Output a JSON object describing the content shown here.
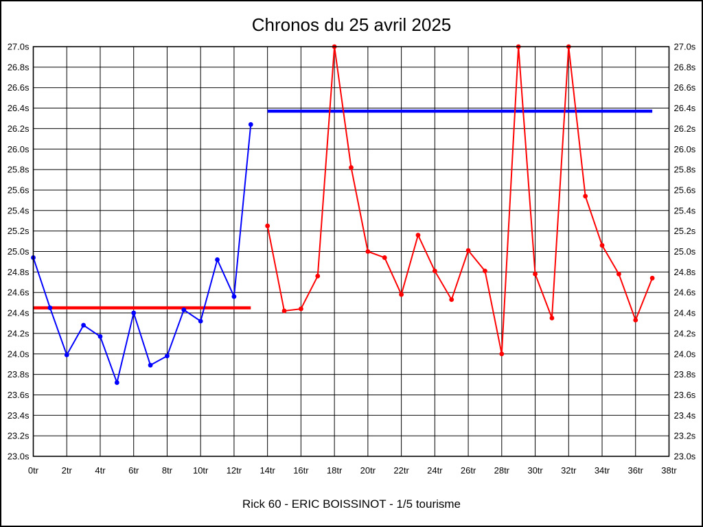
{
  "page": {
    "background_color": "#ffffff",
    "border_color": "#000000"
  },
  "chart_data": {
    "type": "line",
    "title": "Chronos du 25 avril 2025",
    "subtitle": "Rick 60 - ERIC BOISSINOT - 1/5 tourisme",
    "xlabel": "",
    "ylabel": "",
    "x_unit": "tr",
    "y_unit": "s",
    "xlim": [
      0,
      38
    ],
    "ylim": [
      23.0,
      27.0
    ],
    "x_tick_step": 2,
    "y_tick_step": 0.2,
    "grid": "on",
    "legend": "none",
    "grid_color": "#000000",
    "x_tick_labels": [
      "0tr",
      "2tr",
      "4tr",
      "6tr",
      "8tr",
      "10tr",
      "12tr",
      "14tr",
      "16tr",
      "18tr",
      "20tr",
      "22tr",
      "24tr",
      "26tr",
      "28tr",
      "30tr",
      "32tr",
      "34tr",
      "36tr",
      "38tr"
    ],
    "y_tick_labels": [
      "27.0s",
      "26.8s",
      "26.6s",
      "26.4s",
      "26.2s",
      "26.0s",
      "25.8s",
      "25.6s",
      "25.4s",
      "25.2s",
      "25.0s",
      "24.8s",
      "24.6s",
      "24.4s",
      "24.2s",
      "24.0s",
      "23.8s",
      "23.6s",
      "23.4s",
      "23.2s",
      "23.0s"
    ],
    "series": [
      {
        "name": "session-1-blue",
        "color": "#0000ff",
        "x": [
          0,
          1,
          2,
          3,
          4,
          5,
          6,
          7,
          8,
          9,
          10,
          11,
          12,
          13
        ],
        "values": [
          24.94,
          24.45,
          23.99,
          24.28,
          24.17,
          23.72,
          24.4,
          23.89,
          23.98,
          24.43,
          24.32,
          24.92,
          24.56,
          26.24
        ]
      },
      {
        "name": "session-2-red",
        "color": "#ff0000",
        "x": [
          14,
          15,
          16,
          17,
          18,
          19,
          20,
          21,
          22,
          23,
          24,
          25,
          26,
          27,
          28,
          29,
          30,
          31,
          32,
          33,
          34,
          35,
          36,
          37
        ],
        "values": [
          25.25,
          24.42,
          24.44,
          24.76,
          27.0,
          25.82,
          25.0,
          24.94,
          24.58,
          25.16,
          24.81,
          24.53,
          25.01,
          24.81,
          24.0,
          27.0,
          24.78,
          24.35,
          27.0,
          25.54,
          25.06,
          24.78,
          24.33,
          24.74
        ]
      }
    ],
    "reference_lines": [
      {
        "name": "reference-line-session-1",
        "color": "#ff0000",
        "value": 24.45,
        "x_start": 0,
        "x_end": 13
      },
      {
        "name": "reference-line-session-2",
        "color": "#0000ff",
        "value": 26.37,
        "x_start": 14,
        "x_end": 37
      }
    ]
  }
}
